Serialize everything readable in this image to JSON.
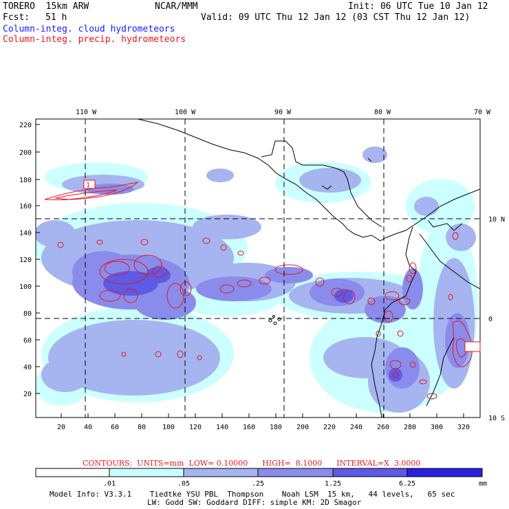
{
  "header": {
    "model": "TORERO  15km ARW",
    "org": "NCAR/MMM",
    "init": "Init: 06 UTC Tue 10 Jan 12",
    "fcst_label": "Fcst:",
    "fcst_value": "51 h",
    "valid": "Valid: 09 UTC Thu 12 Jan 12 (03 CST Thu 12 Jan 12)",
    "field1": "Column-integ. cloud hydrometeors",
    "field2": "Column-integ. precip. hydrometeors"
  },
  "axes": {
    "top_labels": [
      "110 W",
      "100 W",
      "90 W",
      "80 W",
      "70 W"
    ],
    "right_labels": [
      "10 N",
      "0",
      "10 S"
    ],
    "left_ticks": [
      "220",
      "200",
      "180",
      "160",
      "140",
      "120",
      "100",
      "80",
      "60",
      "40",
      "20"
    ],
    "bottom_ticks": [
      "20",
      "40",
      "60",
      "80",
      "100",
      "120",
      "140",
      "160",
      "180",
      "200",
      "220",
      "240",
      "260",
      "280",
      "300",
      "320"
    ]
  },
  "contour_label": "1",
  "contours": {
    "text": "CONTOURS:  UNITS=mm  LOW= 0.10000      HIGH=  8.1000      INTERVAL=X  3.0000"
  },
  "colorbar": {
    "labels": [
      ".01",
      ".05",
      ".25",
      "1.25",
      "6.25"
    ],
    "unit": "mm",
    "colors": [
      "#ffffff",
      "#ccffff",
      "#a6b4f0",
      "#8a8cec",
      "#5d5ae6",
      "#2a20e0"
    ]
  },
  "footer": {
    "line1": "Model Info: V3.3.1    Tiedtke YSU PBL  Thompson    Noah LSM  15 km,   44 levels,   65 sec",
    "line2": "LW: Godd SW: Goddard DIFF: simple KM: 2D Smagor"
  },
  "colors": {
    "cloud_text": "#1a1aff",
    "precip_text": "#e8141e",
    "contour_line": "#e8141e"
  }
}
